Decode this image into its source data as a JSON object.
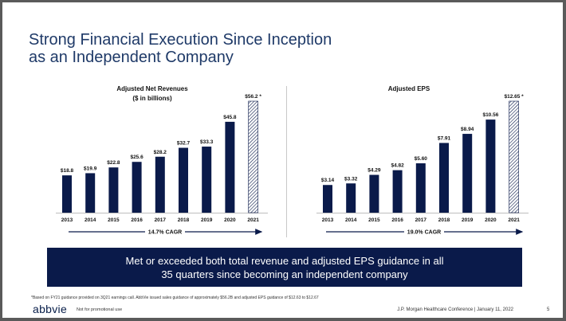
{
  "slide": {
    "title_line1": "Strong Financial Execution Since Inception",
    "title_line2": "as an Independent Company",
    "banner_line1": "Met or exceeded both total revenue and adjusted EPS guidance in all",
    "banner_line2": "35 quarters since becoming an independent company",
    "footnote": "*Based on FY21 guidance provided on 3Q21 earnings call. AbbVie issued sales guidance of approximately $56.2B and adjusted EPS guidance of $12.63 to $12.67",
    "logo_text": "abbvie",
    "not_promotional": "Not for promotional use",
    "conference": "J.P. Morgan Healthcare Conference | January 11, 2022",
    "page_number": "5"
  },
  "colors": {
    "bar": "#0a1a4a",
    "title": "#1f3a68",
    "banner": "#0a1a4a"
  },
  "chart_data": [
    {
      "type": "bar",
      "title": "Adjusted Net Revenues",
      "subtitle": "($ in billions)",
      "categories": [
        "2013",
        "2014",
        "2015",
        "2016",
        "2017",
        "2018",
        "2019",
        "2020",
        "2021"
      ],
      "values": [
        18.8,
        19.9,
        22.8,
        25.6,
        28.2,
        32.7,
        33.3,
        45.8,
        56.2
      ],
      "labels": [
        "$18.8",
        "$19.9",
        "$22.8",
        "$25.6",
        "$28.2",
        "$32.7",
        "$33.3",
        "$45.8",
        "$56.2 *"
      ],
      "hatched": [
        false,
        false,
        false,
        false,
        false,
        false,
        false,
        false,
        true
      ],
      "ylim": [
        0,
        56.2
      ],
      "cagr": "14.7% CAGR"
    },
    {
      "type": "bar",
      "title": "Adjusted EPS",
      "categories": [
        "2013",
        "2014",
        "2015",
        "2016",
        "2017",
        "2018",
        "2019",
        "2020",
        "2021"
      ],
      "values": [
        3.14,
        3.32,
        4.29,
        4.82,
        5.6,
        7.91,
        8.94,
        10.56,
        12.65
      ],
      "labels": [
        "$3.14",
        "$3.32",
        "$4.29",
        "$4.82",
        "$5.60",
        "$7.91",
        "$8.94",
        "$10.56",
        "$12.65 *"
      ],
      "hatched": [
        false,
        false,
        false,
        false,
        false,
        false,
        false,
        false,
        true
      ],
      "ylim": [
        0,
        12.65
      ],
      "cagr": "19.0% CAGR"
    }
  ]
}
